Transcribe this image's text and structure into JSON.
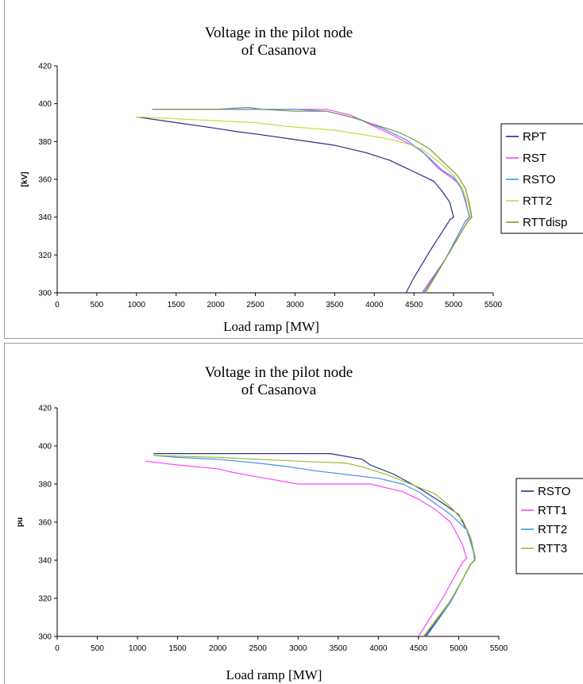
{
  "chart_data": [
    {
      "type": "line",
      "title": "Voltage in the pilot node\nof Casanova",
      "xlabel": "Load ramp [MW]",
      "ylabel": "[kV]",
      "xlim": [
        0,
        5500
      ],
      "ylim": [
        300,
        420
      ],
      "xticks": [
        0,
        500,
        1000,
        1500,
        2000,
        2500,
        3000,
        3500,
        4000,
        4500,
        5000,
        5500
      ],
      "yticks": [
        300,
        320,
        340,
        360,
        380,
        400,
        420
      ],
      "grid": false,
      "legend_position": "right",
      "series": [
        {
          "name": "RPT",
          "color": "#2b2b8c",
          "x": [
            1000,
            1500,
            2000,
            2300,
            2500,
            3000,
            3500,
            3900,
            4200,
            4500,
            4750,
            4850,
            4950,
            5000,
            4960,
            4700,
            4500,
            4400
          ],
          "y": [
            393,
            390,
            387,
            385,
            384,
            381,
            378,
            374,
            370,
            364,
            359,
            354,
            348,
            340,
            339,
            322,
            308,
            300
          ]
        },
        {
          "name": "RST",
          "color": "#ff44ff",
          "x": [
            1200,
            2000,
            3000,
            3400,
            3700,
            4000,
            4300,
            4600,
            4800,
            5000,
            5080,
            5150,
            5180,
            5200,
            5150,
            4900,
            4600
          ],
          "y": [
            397,
            397,
            397,
            397,
            394,
            388,
            382,
            375,
            366,
            360,
            357,
            349,
            343,
            340,
            338,
            318,
            300
          ]
        },
        {
          "name": "RSTO",
          "color": "#4a8fe8",
          "x": [
            1200,
            2000,
            3000,
            3400,
            3800,
            4100,
            4400,
            4650,
            4850,
            5000,
            5100,
            5150,
            5200,
            5150,
            4900,
            4620
          ],
          "y": [
            397,
            397,
            397,
            396,
            392,
            387,
            381,
            373,
            365,
            361,
            355,
            348,
            340,
            338,
            318,
            300
          ]
        },
        {
          "name": "RTT2",
          "color": "#c6d93c",
          "x": [
            1000,
            1500,
            2000,
            2500,
            2900,
            3200,
            3500,
            3800,
            4100,
            4400,
            4600,
            4850,
            5000,
            5100,
            5180,
            5220,
            5170,
            4900,
            4650
          ],
          "y": [
            393,
            392,
            391,
            390,
            388,
            387,
            386,
            384,
            382,
            379,
            376,
            368,
            362,
            356,
            348,
            340,
            337,
            318,
            300
          ]
        },
        {
          "name": "RTTdisp",
          "color": "#7a9a3a",
          "x": [
            1200,
            2000,
            2400,
            2600,
            3000,
            3400,
            3700,
            4000,
            4300,
            4500,
            4700,
            4900,
            5050,
            5150,
            5200,
            5230,
            5180,
            4900,
            4640
          ],
          "y": [
            397,
            397,
            398,
            397,
            396,
            396,
            393,
            389,
            385,
            381,
            376,
            368,
            362,
            355,
            347,
            340,
            338,
            318,
            300
          ]
        }
      ]
    },
    {
      "type": "line",
      "title": "Voltage in the pilot node\nof Casanova",
      "xlabel": "Load ramp [MW]",
      "ylabel": "pu",
      "xlim": [
        0,
        5500
      ],
      "ylim": [
        300,
        420
      ],
      "xticks": [
        0,
        500,
        1000,
        1500,
        2000,
        2500,
        3000,
        3500,
        4000,
        4500,
        5000,
        5500
      ],
      "yticks": [
        300,
        320,
        340,
        360,
        380,
        400,
        420
      ],
      "grid": false,
      "legend_position": "right",
      "series": [
        {
          "name": "RSTO",
          "color": "#2b2b8c",
          "x": [
            1200,
            2000,
            3000,
            3400,
            3800,
            3900,
            4200,
            4500,
            4800,
            5000,
            5100,
            5180,
            5200,
            5150,
            4900,
            4580
          ],
          "y": [
            396,
            396,
            396,
            396,
            393,
            390,
            385,
            378,
            370,
            364,
            356,
            346,
            340,
            338,
            318,
            300
          ]
        },
        {
          "name": "RTT1",
          "color": "#ff44ff",
          "x": [
            1100,
            1500,
            2000,
            2200,
            2600,
            3000,
            3500,
            3900,
            4300,
            4500,
            4700,
            4900,
            5050,
            5100,
            5050,
            4800,
            4500
          ],
          "y": [
            392,
            390,
            388,
            386,
            383,
            380,
            380,
            380,
            376,
            372,
            367,
            360,
            348,
            341,
            339,
            320,
            300
          ]
        },
        {
          "name": "RTT2",
          "color": "#4a8fe8",
          "x": [
            1200,
            1500,
            2000,
            2500,
            2900,
            3200,
            3600,
            4000,
            4300,
            4500,
            4700,
            4900,
            5100,
            5180,
            5200,
            5150,
            4900,
            4600
          ],
          "y": [
            395,
            394,
            393,
            391,
            389,
            387,
            385,
            383,
            380,
            376,
            370,
            364,
            356,
            345,
            340,
            338,
            318,
            300
          ]
        },
        {
          "name": "RTT3",
          "color": "#9abf2a",
          "x": [
            1200,
            2000,
            3000,
            3600,
            3800,
            4100,
            4400,
            4700,
            4900,
            5050,
            5150,
            5210,
            5170,
            4900,
            4560
          ],
          "y": [
            395,
            394,
            392,
            391,
            389,
            385,
            380,
            375,
            368,
            361,
            352,
            341,
            339,
            319,
            300
          ]
        }
      ]
    }
  ]
}
